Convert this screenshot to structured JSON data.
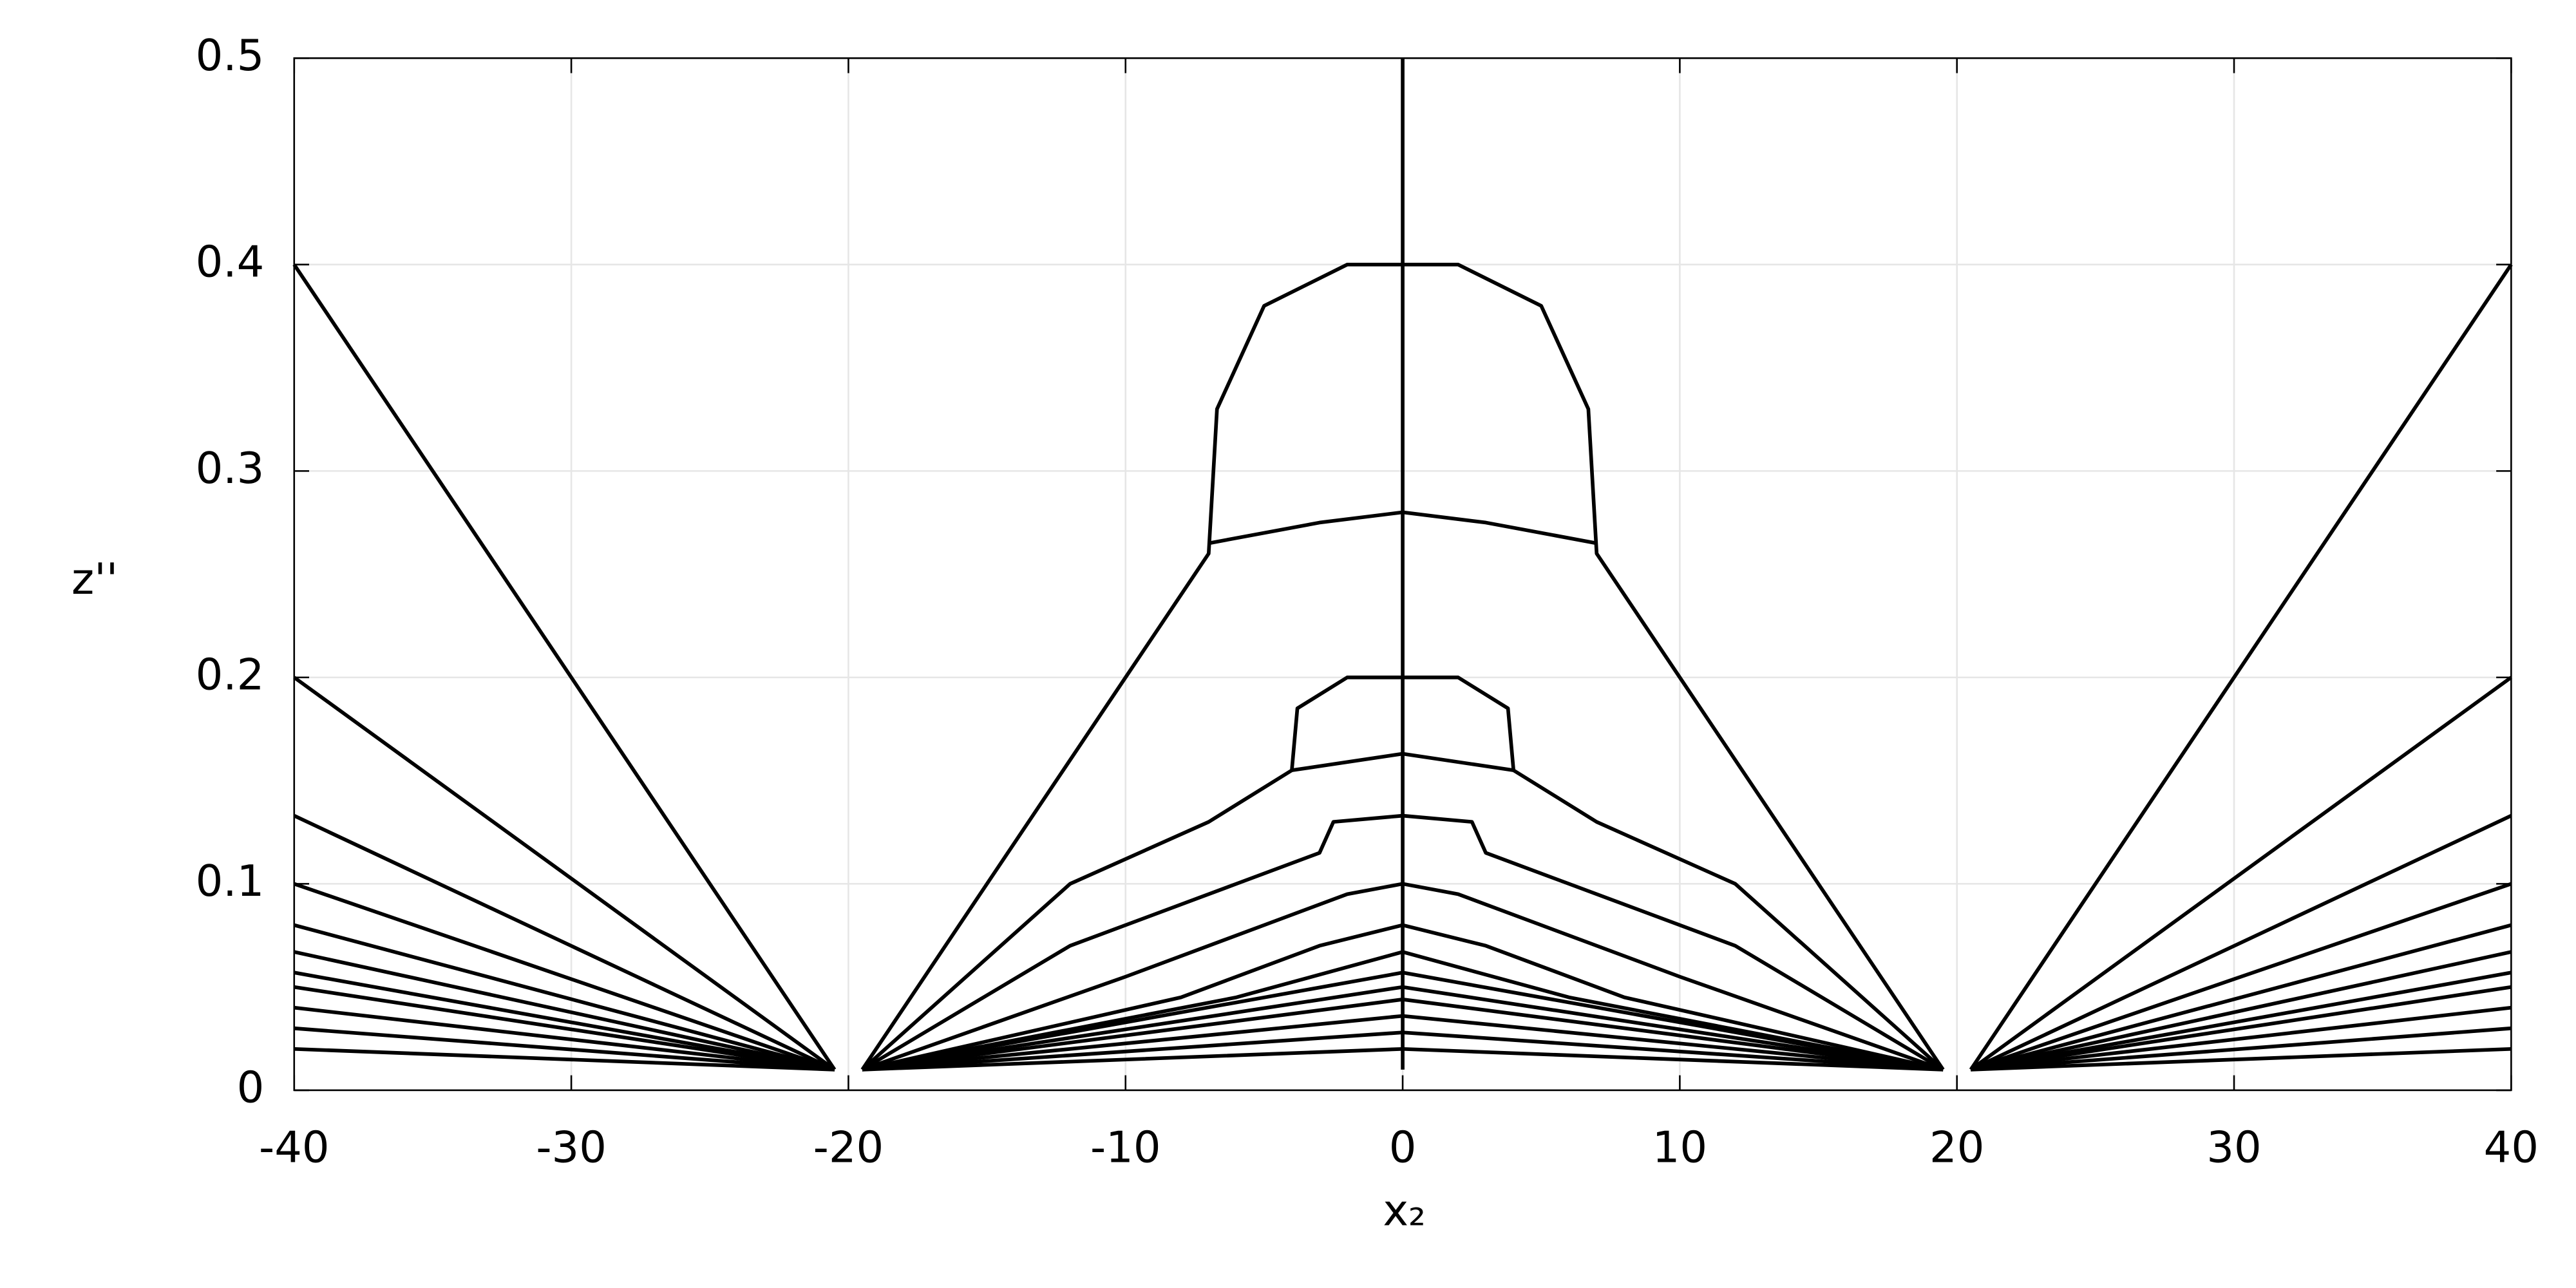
{
  "chart_data": {
    "type": "line",
    "xlabel": "x₂",
    "ylabel": "z''",
    "xlim": [
      -40,
      40
    ],
    "ylim": [
      0,
      0.5
    ],
    "xticks": [
      -40,
      -30,
      -20,
      -10,
      0,
      10,
      20,
      30,
      40
    ],
    "yticks": [
      0,
      0.1,
      0.2,
      0.3,
      0.4,
      0.5
    ],
    "grid": true,
    "series": [
      {
        "color": "#000000",
        "x": [
          -19.5,
          -10,
          -7,
          -6.7,
          -5,
          -2,
          0,
          2,
          5,
          6.7,
          7,
          10,
          19.5
        ],
        "values": [
          0.01,
          0.2,
          0.26,
          0.33,
          0.38,
          0.4,
          0.4,
          0.4,
          0.38,
          0.33,
          0.26,
          0.2,
          0.01
        ]
      },
      {
        "color": "#000000",
        "x": [
          -7,
          -3,
          0,
          3,
          7
        ],
        "values": [
          0.265,
          0.275,
          0.28,
          0.275,
          0.265
        ]
      },
      {
        "color": "#000000",
        "x": [
          -19.5,
          -12,
          -7,
          -4,
          -3.8,
          -2,
          0,
          2,
          3.8,
          4,
          7,
          12,
          19.5
        ],
        "values": [
          0.01,
          0.1,
          0.13,
          0.155,
          0.185,
          0.2,
          0.2,
          0.2,
          0.185,
          0.155,
          0.13,
          0.1,
          0.01
        ]
      },
      {
        "color": "#000000",
        "x": [
          -4,
          0,
          4
        ],
        "values": [
          0.155,
          0.163,
          0.155
        ]
      },
      {
        "color": "#000000",
        "x": [
          -19.5,
          -12,
          -6,
          -3,
          -2.5,
          0,
          2.5,
          3,
          6,
          12,
          19.5
        ],
        "values": [
          0.01,
          0.07,
          0.1,
          0.115,
          0.13,
          0.133,
          0.13,
          0.115,
          0.1,
          0.07,
          0.01
        ]
      },
      {
        "color": "#000000",
        "x": [
          -19.5,
          -10,
          -5,
          -2,
          0,
          2,
          5,
          10,
          19.5
        ],
        "values": [
          0.01,
          0.055,
          0.08,
          0.095,
          0.1,
          0.095,
          0.08,
          0.055,
          0.01
        ]
      },
      {
        "color": "#000000",
        "x": [
          -19.5,
          -8,
          -3,
          0,
          3,
          8,
          19.5
        ],
        "values": [
          0.01,
          0.045,
          0.07,
          0.08,
          0.07,
          0.045,
          0.01
        ]
      },
      {
        "color": "#000000",
        "x": [
          -19.5,
          -6,
          0,
          6,
          19.5
        ],
        "values": [
          0.01,
          0.045,
          0.067,
          0.045,
          0.01
        ]
      },
      {
        "color": "#000000",
        "x": [
          -19.5,
          0,
          19.5
        ],
        "values": [
          0.01,
          0.057,
          0.01
        ]
      },
      {
        "color": "#000000",
        "x": [
          -19.5,
          0,
          19.5
        ],
        "values": [
          0.01,
          0.05,
          0.01
        ]
      },
      {
        "color": "#000000",
        "x": [
          -19.5,
          0,
          19.5
        ],
        "values": [
          0.01,
          0.044,
          0.01
        ]
      },
      {
        "color": "#000000",
        "x": [
          -19.5,
          0,
          19.5
        ],
        "values": [
          0.01,
          0.036,
          0.01
        ]
      },
      {
        "color": "#000000",
        "x": [
          -19.5,
          0,
          19.5
        ],
        "values": [
          0.01,
          0.028,
          0.01
        ]
      },
      {
        "color": "#000000",
        "x": [
          -19.5,
          0,
          19.5
        ],
        "values": [
          0.01,
          0.02,
          0.01
        ]
      },
      {
        "color": "#000000",
        "x": [
          0,
          0
        ],
        "values": [
          0.01,
          0.5
        ]
      },
      {
        "color": "#000000",
        "x": [
          -40,
          -20.5
        ],
        "values": [
          0.4,
          0.01
        ]
      },
      {
        "color": "#000000",
        "x": [
          -40,
          -20.5
        ],
        "values": [
          0.2,
          0.01
        ]
      },
      {
        "color": "#000000",
        "x": [
          -40,
          -20.5
        ],
        "values": [
          0.133,
          0.01
        ]
      },
      {
        "color": "#000000",
        "x": [
          -40,
          -20.5
        ],
        "values": [
          0.1,
          0.01
        ]
      },
      {
        "color": "#000000",
        "x": [
          -40,
          -20.5
        ],
        "values": [
          0.08,
          0.01
        ]
      },
      {
        "color": "#000000",
        "x": [
          -40,
          -20.5
        ],
        "values": [
          0.067,
          0.01
        ]
      },
      {
        "color": "#000000",
        "x": [
          -40,
          -20.5
        ],
        "values": [
          0.057,
          0.01
        ]
      },
      {
        "color": "#000000",
        "x": [
          -40,
          -20.5
        ],
        "values": [
          0.05,
          0.01
        ]
      },
      {
        "color": "#000000",
        "x": [
          -40,
          -20.5
        ],
        "values": [
          0.04,
          0.01
        ]
      },
      {
        "color": "#000000",
        "x": [
          -40,
          -20.5
        ],
        "values": [
          0.03,
          0.01
        ]
      },
      {
        "color": "#000000",
        "x": [
          -40,
          -20.5
        ],
        "values": [
          0.02,
          0.01
        ]
      },
      {
        "color": "#000000",
        "x": [
          20.5,
          40
        ],
        "values": [
          0.01,
          0.4
        ]
      },
      {
        "color": "#000000",
        "x": [
          20.5,
          40
        ],
        "values": [
          0.01,
          0.2
        ]
      },
      {
        "color": "#000000",
        "x": [
          20.5,
          40
        ],
        "values": [
          0.01,
          0.133
        ]
      },
      {
        "color": "#000000",
        "x": [
          20.5,
          40
        ],
        "values": [
          0.01,
          0.1
        ]
      },
      {
        "color": "#000000",
        "x": [
          20.5,
          40
        ],
        "values": [
          0.01,
          0.08
        ]
      },
      {
        "color": "#000000",
        "x": [
          20.5,
          40
        ],
        "values": [
          0.01,
          0.067
        ]
      },
      {
        "color": "#000000",
        "x": [
          20.5,
          40
        ],
        "values": [
          0.01,
          0.057
        ]
      },
      {
        "color": "#000000",
        "x": [
          20.5,
          40
        ],
        "values": [
          0.01,
          0.05
        ]
      },
      {
        "color": "#000000",
        "x": [
          20.5,
          40
        ],
        "values": [
          0.01,
          0.04
        ]
      },
      {
        "color": "#000000",
        "x": [
          20.5,
          40
        ],
        "values": [
          0.01,
          0.03
        ]
      },
      {
        "color": "#000000",
        "x": [
          20.5,
          40
        ],
        "values": [
          0.01,
          0.02
        ]
      }
    ]
  }
}
